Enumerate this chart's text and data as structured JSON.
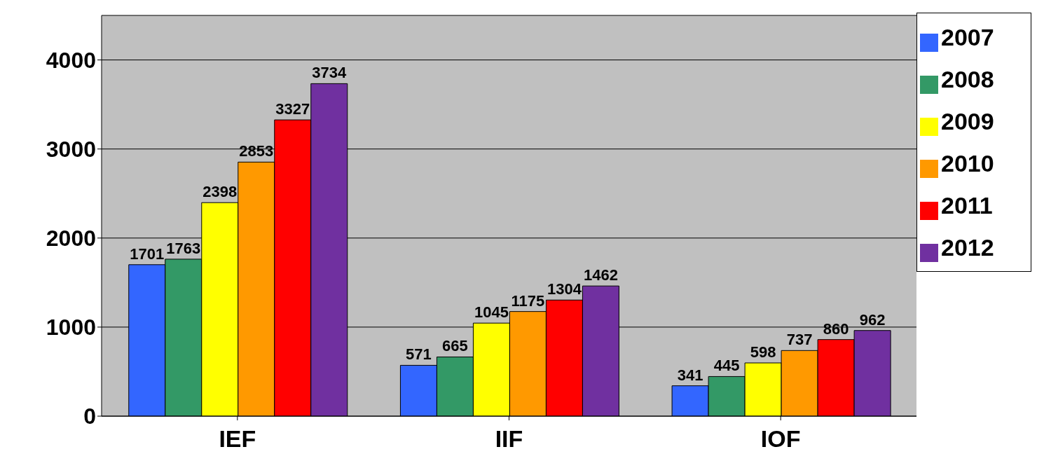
{
  "chart_data": {
    "type": "bar",
    "categories": [
      "IEF",
      "IIF",
      "IOF"
    ],
    "series": [
      {
        "name": "2007",
        "color": "#3366ff",
        "values": [
          1701,
          571,
          341
        ]
      },
      {
        "name": "2008",
        "color": "#339966",
        "values": [
          1763,
          665,
          445
        ]
      },
      {
        "name": "2009",
        "color": "#ffff00",
        "values": [
          2398,
          1045,
          598
        ]
      },
      {
        "name": "2010",
        "color": "#ff9900",
        "values": [
          2853,
          1175,
          737
        ]
      },
      {
        "name": "2011",
        "color": "#ff0000",
        "values": [
          3327,
          1304,
          860
        ]
      },
      {
        "name": "2012",
        "color": "#7030a0",
        "values": [
          3734,
          1462,
          962
        ]
      }
    ],
    "ylim": [
      0,
      4500
    ],
    "yticks": [
      0,
      1000,
      2000,
      3000,
      4000
    ],
    "grid": "y",
    "legend": "top right",
    "data_labels": true
  }
}
